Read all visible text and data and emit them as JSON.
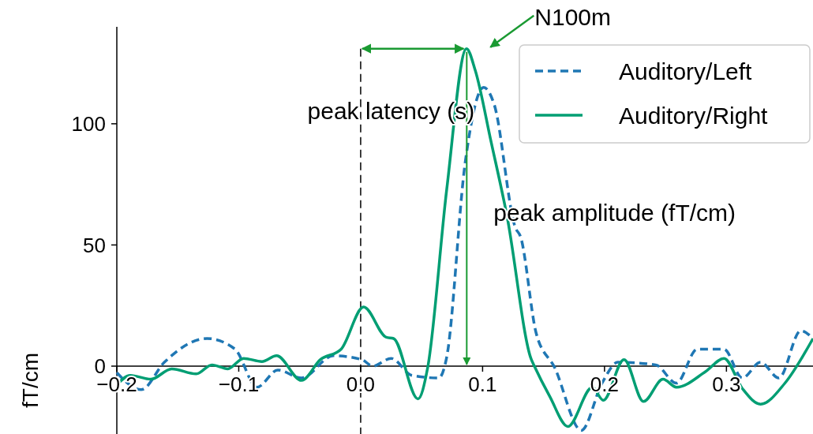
{
  "chart_data": {
    "type": "line",
    "ylabel": "fT/cm",
    "xlim": [
      -0.2,
      0.371
    ],
    "ylim": [
      -28,
      140
    ],
    "xticks": [
      {
        "value": -0.2,
        "label": "−0.2"
      },
      {
        "value": -0.1,
        "label": "−0.1"
      },
      {
        "value": 0,
        "label": "0.0"
      },
      0.1,
      0.2,
      0.3
    ],
    "yticks": [
      0,
      50,
      100
    ],
    "grid": false,
    "legend": "top right",
    "ref_lines": [
      {
        "axis": "x",
        "value": 0,
        "color": "#000000",
        "line_style": "dashed"
      }
    ],
    "annotations": [
      {
        "text": "N100m",
        "x": 0.087,
        "y": 131
      },
      "peak latency (s)",
      "peak amplitude (fT/cm)"
    ],
    "series": [
      {
        "name": "Auditory/Left",
        "color": "#1f77b4",
        "line_style": "dashed",
        "x": [
          -0.2,
          -0.18,
          -0.161,
          -0.126,
          -0.103,
          -0.085,
          -0.068,
          -0.0485,
          -0.0225,
          0.001,
          0.0099,
          0.025,
          0.042,
          0.064,
          0.0706,
          0.0857,
          0.1009,
          0.1095,
          0.127,
          0.131,
          0.144,
          0.159,
          0.181,
          0.198,
          0.211,
          0.242,
          0.259,
          0.276,
          0.298,
          0.313,
          0.328,
          0.343,
          0.361,
          0.371
        ],
        "values": [
          -2.7,
          -9.7,
          1.6,
          11.4,
          7.0,
          -8.7,
          -1.6,
          -4.9,
          4.3,
          2.7,
          0,
          3.2,
          -3.8,
          -4.9,
          3.8,
          83.9,
          115,
          108,
          57,
          53.6,
          13.5,
          -0.5,
          -26.5,
          -7.0,
          1.6,
          0.5,
          -7.0,
          7.0,
          7.0,
          -4.9,
          1.6,
          -4.9,
          14.6,
          11.4
        ]
      },
      {
        "name": "Auditory/Right",
        "color": "#009e73",
        "line_style": "solid",
        "x": [
          -0.2,
          -0.189,
          -0.172,
          -0.155,
          -0.135,
          -0.122,
          -0.109,
          -0.096,
          -0.081,
          -0.069,
          -0.0485,
          -0.033,
          -0.016,
          0.0024,
          0.021,
          0.027,
          0.047,
          0.055,
          0.0706,
          0.0868,
          0.094,
          0.107,
          0.12,
          0.14,
          0.142,
          0.155,
          0.17,
          0.19,
          0.199,
          0.216,
          0.232,
          0.248,
          0.259,
          0.283,
          0.298,
          0.313,
          0.328,
          0.348,
          0.371
        ],
        "values": [
          -7.7,
          -3.8,
          -5.4,
          -1.1,
          -3.2,
          0.5,
          -1.1,
          3.2,
          1.9,
          4.3,
          -5.9,
          2.7,
          7.0,
          24.4,
          11.9,
          11.4,
          -13.5,
          -0.5,
          73,
          131,
          122,
          92.5,
          62,
          2.7,
          0.5,
          -12.4,
          -24.9,
          -8.7,
          -14.1,
          2.7,
          -14.6,
          -5.4,
          -8.7,
          -2.2,
          3.2,
          -9.2,
          -15.7,
          -7.0,
          11.4
        ]
      }
    ]
  }
}
